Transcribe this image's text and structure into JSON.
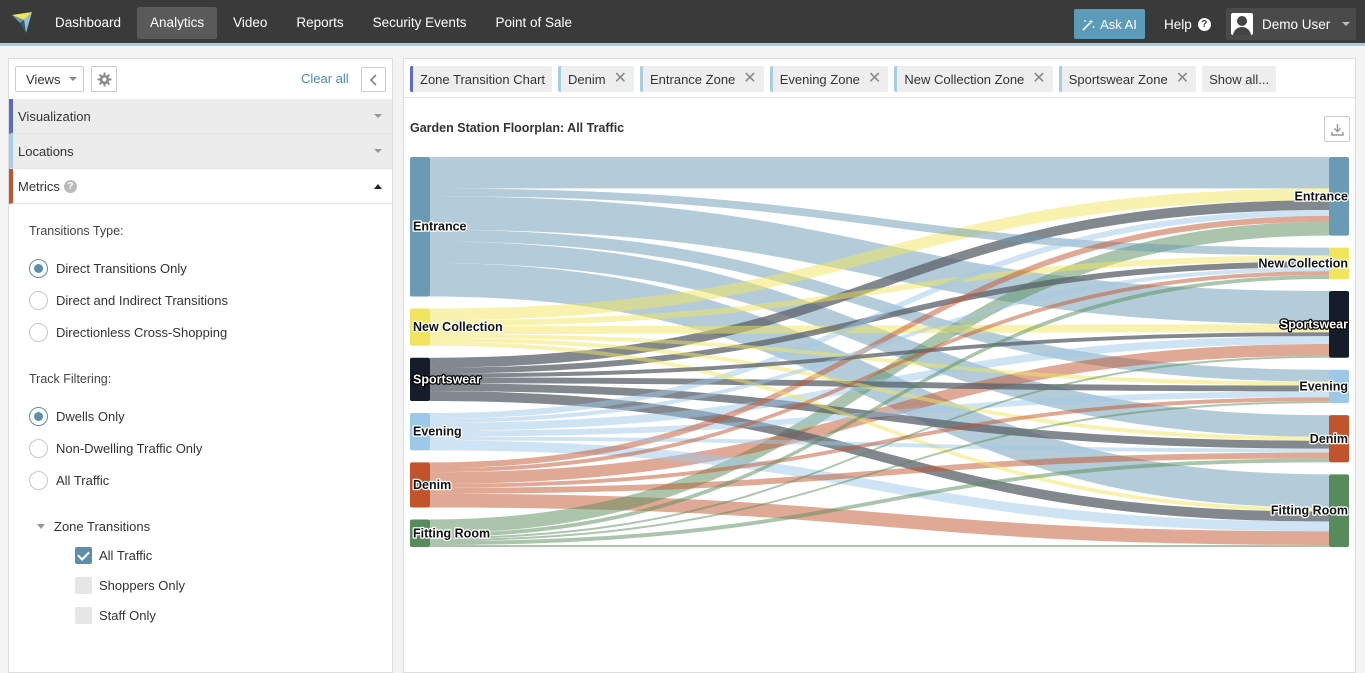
{
  "nav": {
    "items": [
      "Dashboard",
      "Analytics",
      "Video",
      "Reports",
      "Security Events",
      "Point of Sale"
    ],
    "active_index": 1,
    "ask_ai": "Ask AI",
    "help": "Help",
    "user": "Demo User"
  },
  "sidebar": {
    "views_label": "Views",
    "clear_all": "Clear all",
    "sections": [
      "Visualization",
      "Locations",
      "Metrics"
    ],
    "transitions_type_label": "Transitions Type:",
    "transitions_options": [
      "Direct Transitions Only",
      "Direct and Indirect Transitions",
      "Directionless Cross-Shopping"
    ],
    "transitions_selected": 0,
    "track_filtering_label": "Track Filtering:",
    "track_options": [
      "Dwells Only",
      "Non-Dwelling Traffic Only",
      "All Traffic"
    ],
    "track_selected": 0,
    "zone_transitions_label": "Zone Transitions",
    "zone_options": [
      {
        "label": "All Traffic",
        "checked": true
      },
      {
        "label": "Shoppers Only",
        "checked": false
      },
      {
        "label": "Staff Only",
        "checked": false
      }
    ]
  },
  "filters": {
    "chips": [
      "Zone Transition Chart",
      "Denim",
      "Entrance Zone",
      "Evening Zone",
      "New Collection Zone",
      "Sportswear Zone"
    ],
    "show_all": "Show all..."
  },
  "chart_title": "Garden Station Floorplan: All Traffic",
  "chart_data": {
    "type": "sankey",
    "title": "Garden Station Floorplan: All Traffic",
    "sources": [
      {
        "name": "Entrance",
        "color": "#6a9ab4"
      },
      {
        "name": "New Collection",
        "color": "#f2e55e"
      },
      {
        "name": "Sportswear",
        "color": "#161c29"
      },
      {
        "name": "Evening",
        "color": "#9dc8e8"
      },
      {
        "name": "Denim",
        "color": "#c1532d"
      },
      {
        "name": "Fitting Room",
        "color": "#578b5c"
      }
    ],
    "targets": [
      {
        "name": "Entrance",
        "color": "#6a9ab4"
      },
      {
        "name": "New Collection",
        "color": "#f2e55e"
      },
      {
        "name": "Sportswear",
        "color": "#161c29"
      },
      {
        "name": "Evening",
        "color": "#9dc8e8"
      },
      {
        "name": "Denim",
        "color": "#c1532d"
      },
      {
        "name": "Fitting Room",
        "color": "#578b5c"
      }
    ],
    "links": [
      {
        "source": "Entrance",
        "target": "Entrance",
        "value": 32
      },
      {
        "source": "Entrance",
        "target": "New Collection",
        "value": 8
      },
      {
        "source": "Entrance",
        "target": "Sportswear",
        "value": 34
      },
      {
        "source": "Entrance",
        "target": "Evening",
        "value": 12
      },
      {
        "source": "Entrance",
        "target": "Denim",
        "value": 22
      },
      {
        "source": "Entrance",
        "target": "Fitting Room",
        "value": 34
      },
      {
        "source": "New Collection",
        "target": "Entrance",
        "value": 12
      },
      {
        "source": "New Collection",
        "target": "New Collection",
        "value": 6
      },
      {
        "source": "New Collection",
        "target": "Sportswear",
        "value": 8
      },
      {
        "source": "New Collection",
        "target": "Evening",
        "value": 4
      },
      {
        "source": "New Collection",
        "target": "Denim",
        "value": 4
      },
      {
        "source": "New Collection",
        "target": "Fitting Room",
        "value": 4
      },
      {
        "source": "Sportswear",
        "target": "Entrance",
        "value": 10
      },
      {
        "source": "Sportswear",
        "target": "New Collection",
        "value": 6
      },
      {
        "source": "Sportswear",
        "target": "Sportswear",
        "value": 4
      },
      {
        "source": "Sportswear",
        "target": "Evening",
        "value": 6
      },
      {
        "source": "Sportswear",
        "target": "Denim",
        "value": 8
      },
      {
        "source": "Sportswear",
        "target": "Fitting Room",
        "value": 10
      },
      {
        "source": "Evening",
        "target": "Entrance",
        "value": 6
      },
      {
        "source": "Evening",
        "target": "New Collection",
        "value": 4
      },
      {
        "source": "Evening",
        "target": "Sportswear",
        "value": 8
      },
      {
        "source": "Evening",
        "target": "Evening",
        "value": 6
      },
      {
        "source": "Evening",
        "target": "Denim",
        "value": 4
      },
      {
        "source": "Evening",
        "target": "Fitting Room",
        "value": 10
      },
      {
        "source": "Denim",
        "target": "Entrance",
        "value": 6
      },
      {
        "source": "Denim",
        "target": "New Collection",
        "value": 4
      },
      {
        "source": "Denim",
        "target": "Sportswear",
        "value": 12
      },
      {
        "source": "Denim",
        "target": "Evening",
        "value": 4
      },
      {
        "source": "Denim",
        "target": "Denim",
        "value": 6
      },
      {
        "source": "Denim",
        "target": "Fitting Room",
        "value": 14
      },
      {
        "source": "Fitting Room",
        "target": "Entrance",
        "value": 14
      },
      {
        "source": "Fitting Room",
        "target": "New Collection",
        "value": 4
      },
      {
        "source": "Fitting Room",
        "target": "Sportswear",
        "value": 2
      },
      {
        "source": "Fitting Room",
        "target": "Evening",
        "value": 2
      },
      {
        "source": "Fitting Room",
        "target": "Denim",
        "value": 4
      },
      {
        "source": "Fitting Room",
        "target": "Fitting Room",
        "value": 2
      }
    ]
  }
}
